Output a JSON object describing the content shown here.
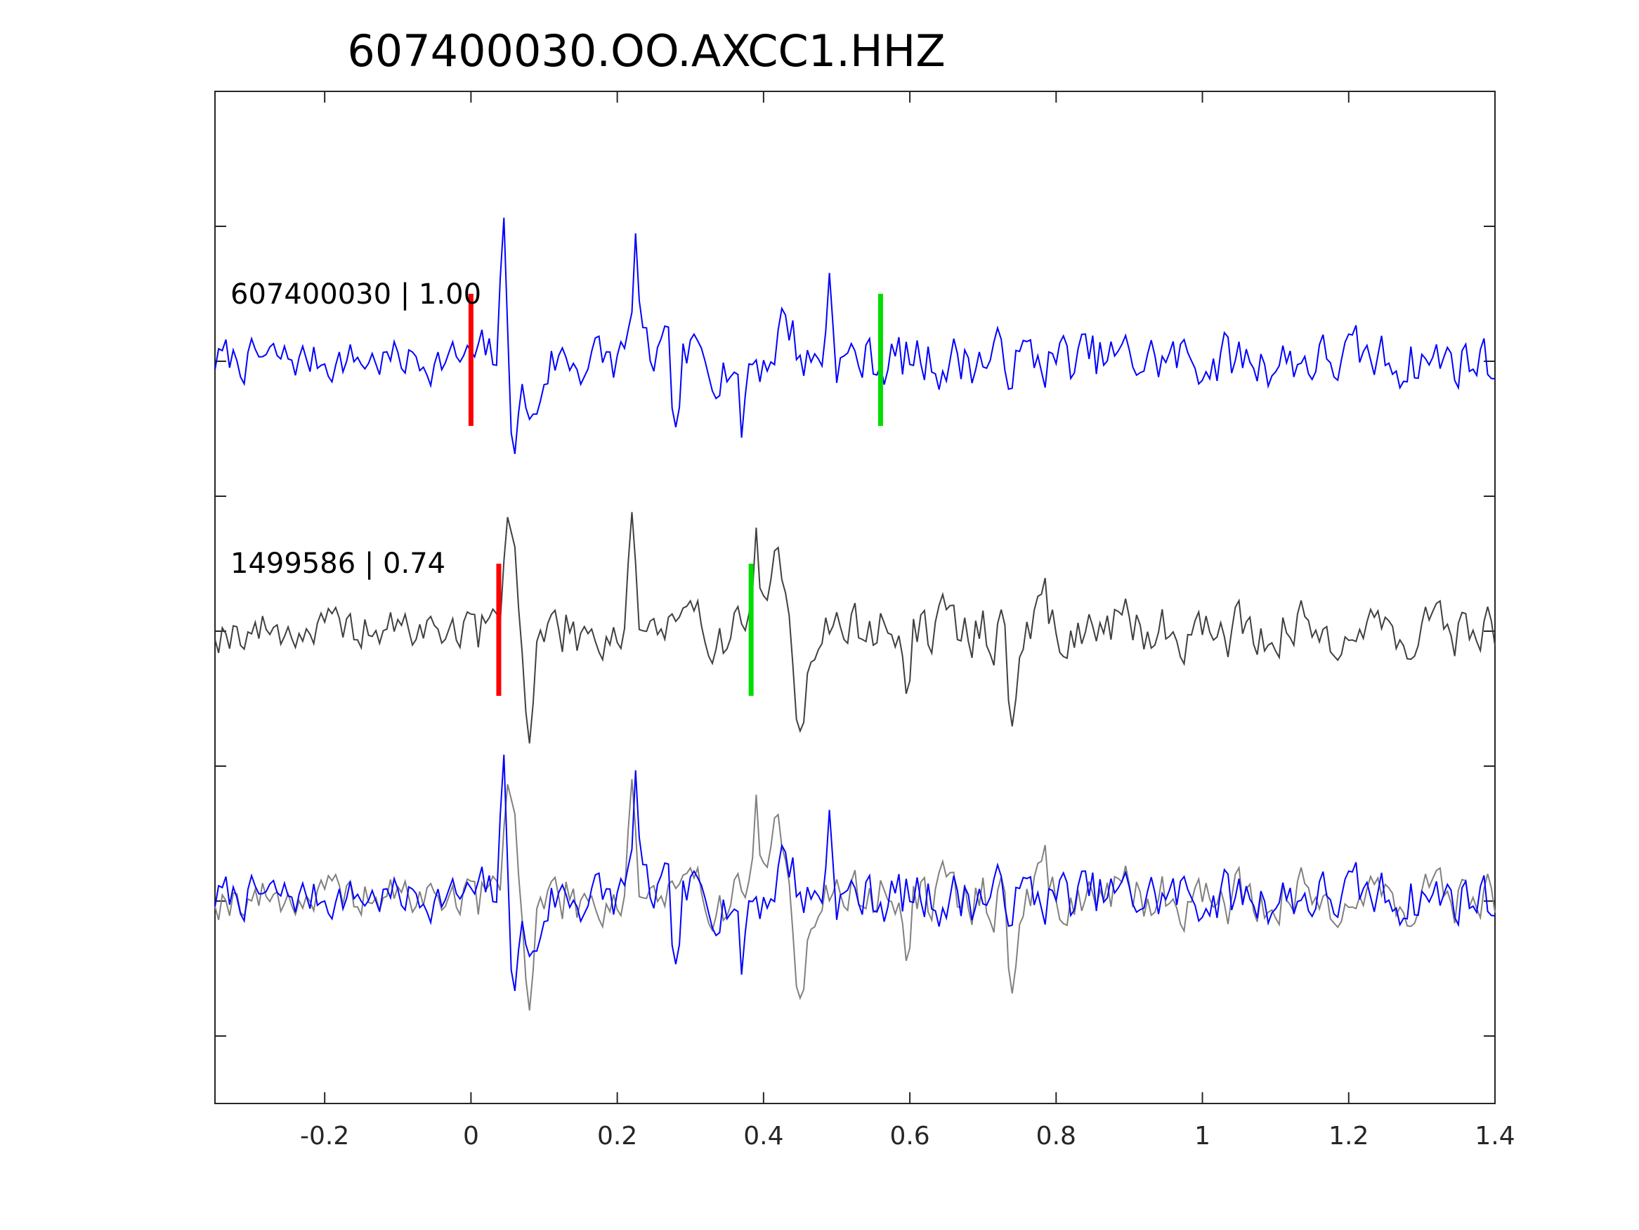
{
  "chart_data": {
    "type": "line",
    "title": "607400030.OO.AXCC1.HHZ",
    "xlim": [
      -0.35,
      1.4
    ],
    "xticks": [
      -0.2,
      0,
      0.2,
      0.4,
      0.6,
      0.8,
      1,
      1.2,
      1.4
    ],
    "xtick_labels": [
      "-0.2",
      "0",
      "0.2",
      "0.4",
      "0.6",
      "0.8",
      "1",
      "1.2",
      "1.4"
    ],
    "grid": false,
    "sample_interval": 0.005,
    "colors": {
      "template": "#0000ff",
      "match": "#404040",
      "overlay_match": "#808080",
      "p_pick": "#ff0000",
      "s_pick": "#00dd00"
    },
    "traces": [
      {
        "label": "607400030 | 1.00",
        "role": "template",
        "p_pick": 0.0,
        "s_pick": 0.56,
        "features": [
          {
            "t": 0.045,
            "a": 1.1,
            "w": 0.006
          },
          {
            "t": 0.06,
            "a": -0.6,
            "w": 0.01
          },
          {
            "t": 0.085,
            "a": -0.55,
            "w": 0.012
          },
          {
            "t": 0.225,
            "a": 1.0,
            "w": 0.006
          },
          {
            "t": 0.28,
            "a": -0.7,
            "w": 0.006
          },
          {
            "t": 0.49,
            "a": 0.7,
            "w": 0.006
          },
          {
            "t": 0.37,
            "a": -0.6,
            "w": 0.006
          },
          {
            "t": 0.43,
            "a": 0.35,
            "w": 0.015
          }
        ]
      },
      {
        "label": "1499586 | 0.74",
        "role": "match",
        "p_pick": 0.038,
        "s_pick": 0.383,
        "features": [
          {
            "t": 0.053,
            "a": 1.1,
            "w": 0.01
          },
          {
            "t": 0.08,
            "a": -1.0,
            "w": 0.008
          },
          {
            "t": 0.22,
            "a": 1.1,
            "w": 0.006
          },
          {
            "t": 0.39,
            "a": 0.75,
            "w": 0.008
          },
          {
            "t": 0.42,
            "a": 0.5,
            "w": 0.01
          },
          {
            "t": 0.45,
            "a": -0.7,
            "w": 0.01
          },
          {
            "t": 0.74,
            "a": -0.9,
            "w": 0.008
          },
          {
            "t": 0.78,
            "a": 0.45,
            "w": 0.008
          },
          {
            "t": 0.595,
            "a": -0.55,
            "w": 0.006
          }
        ]
      }
    ]
  }
}
